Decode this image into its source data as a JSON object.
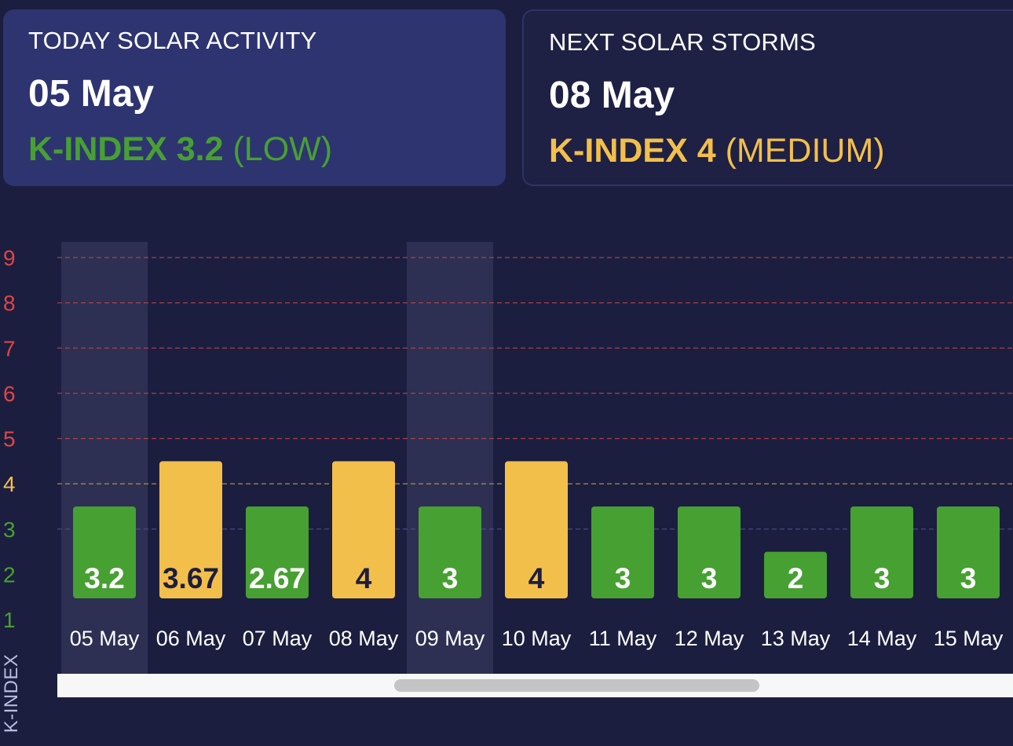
{
  "today": {
    "title": "TODAY SOLAR ACTIVITY",
    "date": "05 May",
    "kindex_label": "K-INDEX 3.2",
    "level": "(LOW)",
    "color": "#47a032"
  },
  "next": {
    "title": "NEXT SOLAR STORMS",
    "date": "08 May",
    "kindex_label": "K-INDEX 4",
    "level": "(MEDIUM)",
    "color": "#f3bf4b"
  },
  "chart_data": {
    "type": "bar",
    "ylabel": "K-INDEX",
    "ylim": [
      1,
      9
    ],
    "yticks": [
      "1",
      "2",
      "3",
      "4",
      "5",
      "6",
      "7",
      "8",
      "9"
    ],
    "categories": [
      "05 May",
      "06 May",
      "07 May",
      "08 May",
      "09 May",
      "10 May",
      "11 May",
      "12 May",
      "13 May",
      "14 May",
      "15 May"
    ],
    "values": [
      3,
      4,
      3,
      4,
      3,
      4,
      3,
      3,
      2,
      3,
      3
    ],
    "labels": [
      "3.2",
      "3.67",
      "2.67",
      "4",
      "3",
      "4",
      "3",
      "3",
      "2",
      "3",
      "3"
    ],
    "bar_colors": [
      "#47a032",
      "#f3bf4b",
      "#47a032",
      "#f3bf4b",
      "#47a032",
      "#f3bf4b",
      "#47a032",
      "#47a032",
      "#47a032",
      "#47a032",
      "#47a032"
    ],
    "label_colors": [
      "#ffffff",
      "#1c1e3f",
      "#ffffff",
      "#1c1e3f",
      "#ffffff",
      "#1c1e3f",
      "#ffffff",
      "#ffffff",
      "#ffffff",
      "#ffffff",
      "#ffffff"
    ],
    "highlighted_categories": [
      "05 May",
      "09 May"
    ],
    "tick_colors": {
      "low": "#47a032",
      "medium": "#f3bf4b",
      "high": "#e04545"
    },
    "grid": true
  }
}
